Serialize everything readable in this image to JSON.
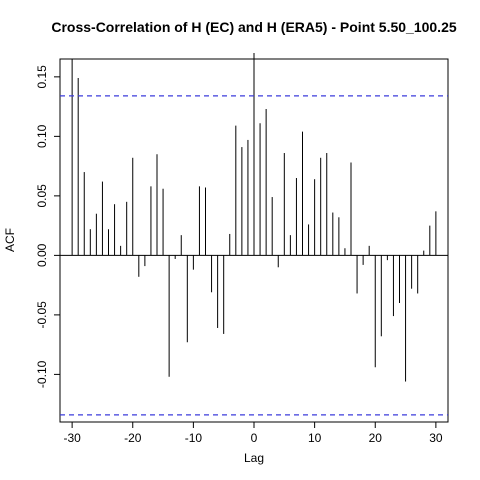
{
  "chart_data": {
    "type": "bar",
    "title": "Cross-Correlation of H (EC) and H (ERA5) - Point 5.50_100.25",
    "xlabel": "Lag",
    "ylabel": "ACF",
    "xlim": [
      -32,
      32
    ],
    "ylim": [
      -0.14,
      0.165
    ],
    "x_ticks": [
      -30,
      -20,
      -10,
      0,
      10,
      20,
      30
    ],
    "y_ticks": [
      -0.1,
      -0.05,
      0.0,
      0.05,
      0.1,
      0.15
    ],
    "y_tick_labels": [
      "-0.10",
      "-0.05",
      "0.00",
      "0.05",
      "0.10",
      "0.15"
    ],
    "x_tick_labels": [
      "-30",
      "-20",
      "-10",
      "0",
      "10",
      "20",
      "30"
    ],
    "confidence_bound": 0.134,
    "confidence_color": "#3b3bdb",
    "bar_color": "#000000",
    "lags": [
      -30,
      -29,
      -28,
      -27,
      -26,
      -25,
      -24,
      -23,
      -22,
      -21,
      -20,
      -19,
      -18,
      -17,
      -16,
      -15,
      -14,
      -13,
      -12,
      -11,
      -10,
      -9,
      -8,
      -7,
      -6,
      -5,
      -4,
      -3,
      -2,
      -1,
      0,
      1,
      2,
      3,
      4,
      5,
      6,
      7,
      8,
      9,
      10,
      11,
      12,
      13,
      14,
      15,
      16,
      17,
      18,
      19,
      20,
      21,
      22,
      23,
      24,
      25,
      26,
      27,
      28,
      29,
      30
    ],
    "values": [
      0.165,
      0.149,
      0.07,
      0.022,
      0.035,
      0.062,
      0.022,
      0.043,
      0.008,
      0.045,
      0.082,
      -0.018,
      -0.009,
      0.058,
      0.085,
      0.056,
      -0.102,
      -0.003,
      0.017,
      -0.073,
      -0.012,
      0.058,
      0.057,
      -0.031,
      -0.061,
      -0.066,
      0.018,
      0.109,
      0.091,
      0.097,
      0.17,
      0.111,
      0.123,
      0.049,
      -0.01,
      0.086,
      0.017,
      0.065,
      0.104,
      0.026,
      0.064,
      0.082,
      0.086,
      0.036,
      0.032,
      0.006,
      0.078,
      -0.032,
      -0.008,
      0.008,
      -0.094,
      -0.068,
      -0.004,
      -0.051,
      -0.04,
      -0.106,
      -0.028,
      -0.032,
      0.004,
      0.025,
      0.037
    ]
  }
}
